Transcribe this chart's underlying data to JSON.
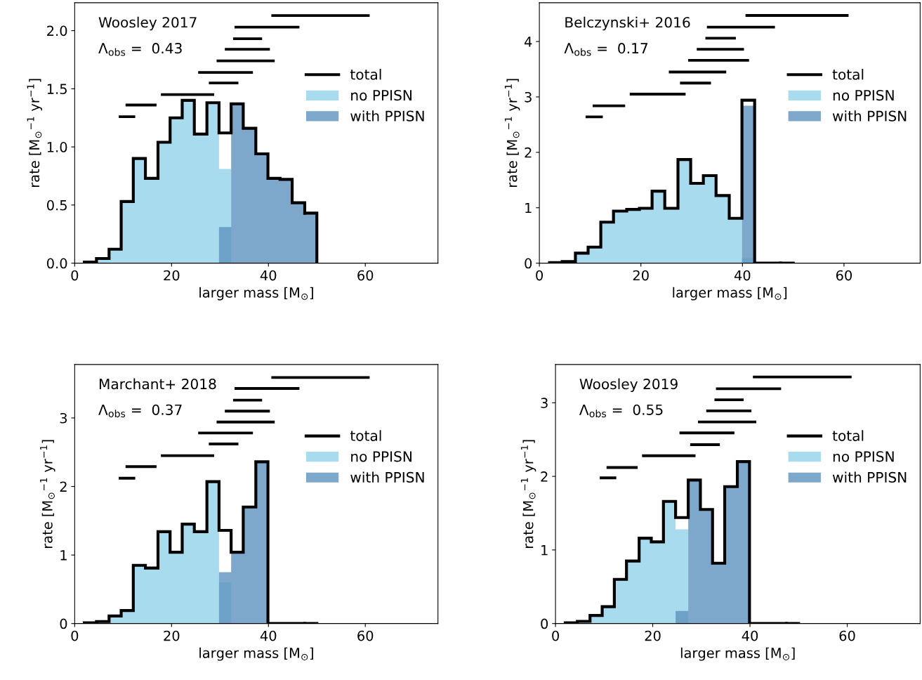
{
  "chart_data": [
    {
      "type": "histogram",
      "title": "Woosley 2017",
      "annotations": [
        "Λ$_{obs}$ =  0.43"
      ],
      "xlabel": "larger mass [M$_{⊙}$]",
      "ylabel": "rate [M$_{⊙}$$^{−1}$ yr$^{−1}$]",
      "bins": [
        2,
        4.5,
        7.1,
        9.6,
        12.1,
        14.6,
        17.2,
        19.7,
        22.2,
        24.7,
        27.3,
        29.8,
        32.3,
        34.8,
        37.4,
        39.9,
        42.4,
        44.9,
        47.5,
        50
      ],
      "xlim": [
        0,
        75
      ],
      "xticks": [
        0,
        20,
        40,
        60
      ],
      "ylim": [
        0,
        2.24
      ],
      "yticks": [
        {
          "value": 0,
          "label": "0.0"
        },
        {
          "value": 0.5,
          "label": "0.5"
        },
        {
          "value": 1,
          "label": "1.0"
        },
        {
          "value": 1.5,
          "label": "1.5"
        },
        {
          "value": 2,
          "label": "2.0"
        }
      ],
      "legend": "right",
      "grid": false,
      "series": [
        {
          "name": "no PPISN",
          "type": "histogram",
          "color": "#a8dbee",
          "values": [
            0.01,
            0.04,
            0.12,
            0.53,
            0.9,
            0.73,
            1.04,
            1.25,
            1.4,
            1.11,
            1.38,
            0.81,
            0,
            0,
            0,
            0,
            0,
            0,
            0
          ]
        },
        {
          "name": "with PPISN",
          "type": "histogram",
          "color": "#7ea8cb",
          "values": [
            0,
            0,
            0,
            0,
            0,
            0,
            0,
            0,
            0,
            0,
            0,
            0.31,
            1.37,
            1.16,
            0.94,
            0.73,
            0.72,
            0.52,
            0.43
          ]
        },
        {
          "name": "total",
          "type": "step",
          "color": "#000000",
          "x": [
            2,
            4.5,
            7.1,
            9.6,
            12.1,
            14.6,
            17.2,
            19.7,
            22.2,
            24.7,
            27.3,
            29.8,
            32.3,
            34.8,
            37.4,
            39.9,
            42.4,
            44.9,
            47.5
          ],
          "values": [
            0.01,
            0.04,
            0.12,
            0.53,
            0.9,
            0.73,
            1.04,
            1.25,
            1.4,
            1.11,
            1.38,
            1.12,
            1.37,
            1.16,
            0.94,
            0.73,
            0.72,
            0.52,
            0.43
          ]
        },
        {
          "type": "line",
          "color": "#000000",
          "x": [
            40.6,
            60.9
          ],
          "values": [
            2.13,
            2.13
          ]
        },
        {
          "type": "line",
          "color": "#000000",
          "x": [
            33.0,
            46.4
          ],
          "values": [
            2.03,
            2.03
          ]
        },
        {
          "type": "line",
          "color": "#000000",
          "x": [
            32.7,
            38.7
          ],
          "values": [
            1.93,
            1.93
          ]
        },
        {
          "type": "line",
          "color": "#000000",
          "x": [
            31.0,
            40.3
          ],
          "values": [
            1.84,
            1.84
          ]
        },
        {
          "type": "line",
          "color": "#000000",
          "x": [
            29.3,
            41.3
          ],
          "values": [
            1.74,
            1.74
          ]
        },
        {
          "type": "line",
          "color": "#000000",
          "x": [
            25.5,
            36.8
          ],
          "values": [
            1.64,
            1.64
          ]
        },
        {
          "type": "line",
          "color": "#000000",
          "x": [
            27.7,
            33.8
          ],
          "values": [
            1.55,
            1.55
          ]
        },
        {
          "type": "line",
          "color": "#000000",
          "x": [
            17.8,
            28.8
          ],
          "values": [
            1.45,
            1.45
          ]
        },
        {
          "type": "line",
          "color": "#000000",
          "x": [
            10.5,
            16.9
          ],
          "values": [
            1.36,
            1.36
          ]
        },
        {
          "type": "line",
          "color": "#000000",
          "x": [
            9.1,
            12.5
          ],
          "values": [
            1.26,
            1.26
          ]
        }
      ]
    },
    {
      "type": "histogram",
      "title": "Belczynski+ 2016",
      "annotations": [
        "Λ$_{obs}$ =  0.17"
      ],
      "xlabel": "larger mass [M$_{⊙}$]",
      "ylabel": "rate [M$_{⊙}$$^{−1}$ yr$^{−1}$]",
      "bins": [
        2,
        4.5,
        7.1,
        9.6,
        12.1,
        14.6,
        17.2,
        19.7,
        22.2,
        24.7,
        27.3,
        29.8,
        32.3,
        34.8,
        37.4,
        39.9,
        42.4,
        44.9,
        47.5,
        50
      ],
      "xlim": [
        0,
        75
      ],
      "xticks": [
        0,
        20,
        40,
        60
      ],
      "ylim": [
        0,
        4.7
      ],
      "yticks": [
        0,
        1,
        2,
        3,
        4
      ],
      "legend": "right",
      "grid": false,
      "series": [
        {
          "name": "no PPISN",
          "type": "histogram",
          "color": "#a8dbee",
          "values": [
            0.01,
            0.03,
            0.18,
            0.29,
            0.74,
            0.94,
            0.97,
            0.99,
            1.3,
            0.99,
            1.87,
            1.44,
            1.58,
            1.22,
            0.81,
            0.09,
            0,
            0,
            0
          ]
        },
        {
          "name": "with PPISN",
          "type": "histogram",
          "color": "#7ea8cb",
          "values": [
            0,
            0,
            0,
            0,
            0,
            0,
            0,
            0,
            0,
            0,
            0,
            0,
            0,
            0,
            0,
            2.84,
            0,
            0,
            0
          ]
        },
        {
          "name": "total",
          "type": "step",
          "color": "#000000",
          "x": [
            2,
            4.5,
            7.1,
            9.6,
            12.1,
            14.6,
            17.2,
            19.7,
            22.2,
            24.7,
            27.3,
            29.8,
            32.3,
            34.8,
            37.4,
            39.9,
            42.4,
            44.9,
            47.5
          ],
          "values": [
            0.01,
            0.03,
            0.18,
            0.29,
            0.74,
            0.94,
            0.97,
            0.99,
            1.3,
            0.99,
            1.87,
            1.44,
            1.58,
            1.22,
            0.81,
            2.94,
            0,
            0,
            0
          ]
        },
        {
          "type": "line",
          "color": "#000000",
          "x": [
            40.6,
            60.9
          ],
          "values": [
            4.47,
            4.47
          ]
        },
        {
          "type": "line",
          "color": "#000000",
          "x": [
            33.0,
            46.4
          ],
          "values": [
            4.26,
            4.26
          ]
        },
        {
          "type": "line",
          "color": "#000000",
          "x": [
            32.7,
            38.7
          ],
          "values": [
            4.06,
            4.06
          ]
        },
        {
          "type": "line",
          "color": "#000000",
          "x": [
            31.0,
            40.3
          ],
          "values": [
            3.86,
            3.86
          ]
        },
        {
          "type": "line",
          "color": "#000000",
          "x": [
            29.3,
            41.3
          ],
          "values": [
            3.66,
            3.66
          ]
        },
        {
          "type": "line",
          "color": "#000000",
          "x": [
            25.5,
            36.8
          ],
          "values": [
            3.45,
            3.45
          ]
        },
        {
          "type": "line",
          "color": "#000000",
          "x": [
            27.7,
            33.8
          ],
          "values": [
            3.25,
            3.25
          ]
        },
        {
          "type": "line",
          "color": "#000000",
          "x": [
            17.8,
            28.8
          ],
          "values": [
            3.05,
            3.05
          ]
        },
        {
          "type": "line",
          "color": "#000000",
          "x": [
            10.5,
            16.9
          ],
          "values": [
            2.84,
            2.84
          ]
        },
        {
          "type": "line",
          "color": "#000000",
          "x": [
            9.1,
            12.5
          ],
          "values": [
            2.64,
            2.64
          ]
        }
      ]
    },
    {
      "type": "histogram",
      "title": "Marchant+ 2018",
      "annotations": [
        "Λ$_{obs}$ =  0.37"
      ],
      "xlabel": "larger mass [M$_{⊙}$]",
      "ylabel": "rate [M$_{⊙}$$^{−1}$ yr$^{−1}$]",
      "bins": [
        2,
        4.5,
        7.1,
        9.6,
        12.1,
        14.6,
        17.2,
        19.7,
        22.2,
        24.7,
        27.3,
        29.8,
        32.3,
        34.8,
        37.4,
        39.9,
        42.4,
        44.9,
        47.5,
        50
      ],
      "xlim": [
        0,
        75
      ],
      "xticks": [
        0,
        20,
        40,
        60
      ],
      "ylim": [
        0,
        3.78
      ],
      "yticks": [
        0,
        1,
        2,
        3
      ],
      "legend": "right",
      "grid": false,
      "series": [
        {
          "name": "no PPISN",
          "type": "histogram",
          "color": "#a8dbee",
          "values": [
            0.01,
            0.03,
            0.11,
            0.19,
            0.85,
            0.81,
            1.34,
            1.04,
            1.45,
            1.34,
            2.07,
            0.6,
            0,
            0,
            0,
            0,
            0,
            0,
            0
          ]
        },
        {
          "name": "with PPISN",
          "type": "histogram",
          "color": "#7ea8cb",
          "values": [
            0,
            0,
            0,
            0,
            0,
            0,
            0,
            0,
            0,
            0,
            0,
            0.75,
            1.04,
            1.7,
            2.36,
            0,
            0,
            0,
            0
          ]
        },
        {
          "name": "total",
          "type": "step",
          "color": "#000000",
          "x": [
            2,
            4.5,
            7.1,
            9.6,
            12.1,
            14.6,
            17.2,
            19.7,
            22.2,
            24.7,
            27.3,
            29.8,
            32.3,
            34.8,
            37.4,
            39.9,
            42.4,
            44.9,
            47.5
          ],
          "values": [
            0.01,
            0.03,
            0.11,
            0.19,
            0.85,
            0.81,
            1.34,
            1.04,
            1.45,
            1.34,
            2.07,
            1.36,
            1.04,
            1.7,
            2.36,
            0,
            0,
            0,
            0
          ]
        },
        {
          "type": "line",
          "color": "#000000",
          "x": [
            40.6,
            60.9
          ],
          "values": [
            3.59,
            3.59
          ]
        },
        {
          "type": "line",
          "color": "#000000",
          "x": [
            33.0,
            46.4
          ],
          "values": [
            3.43,
            3.43
          ]
        },
        {
          "type": "line",
          "color": "#000000",
          "x": [
            32.7,
            38.7
          ],
          "values": [
            3.26,
            3.26
          ]
        },
        {
          "type": "line",
          "color": "#000000",
          "x": [
            31.0,
            40.3
          ],
          "values": [
            3.1,
            3.1
          ]
        },
        {
          "type": "line",
          "color": "#000000",
          "x": [
            29.3,
            41.3
          ],
          "values": [
            2.94,
            2.94
          ]
        },
        {
          "type": "line",
          "color": "#000000",
          "x": [
            25.5,
            36.8
          ],
          "values": [
            2.78,
            2.78
          ]
        },
        {
          "type": "line",
          "color": "#000000",
          "x": [
            27.7,
            33.8
          ],
          "values": [
            2.62,
            2.62
          ]
        },
        {
          "type": "line",
          "color": "#000000",
          "x": [
            17.8,
            28.8
          ],
          "values": [
            2.45,
            2.45
          ]
        },
        {
          "type": "line",
          "color": "#000000",
          "x": [
            10.5,
            16.9
          ],
          "values": [
            2.29,
            2.29
          ]
        },
        {
          "type": "line",
          "color": "#000000",
          "x": [
            9.1,
            12.5
          ],
          "values": [
            2.12,
            2.12
          ]
        }
      ]
    },
    {
      "type": "histogram",
      "title": "Woosley 2019",
      "annotations": [
        "Λ$_{obs}$ =  0.55"
      ],
      "xlabel": "larger mass [M$_{⊙}$]",
      "ylabel": "rate [M$_{⊙}$$^{−1}$ yr$^{−1}$]",
      "bins": [
        2,
        4.5,
        7.1,
        9.6,
        12.1,
        14.6,
        17.2,
        19.7,
        22.2,
        24.7,
        27.3,
        29.8,
        32.3,
        34.8,
        37.4,
        39.9,
        42.4,
        44.9,
        47.5,
        50
      ],
      "xlim": [
        0,
        75
      ],
      "xticks": [
        0,
        20,
        40,
        60
      ],
      "ylim": [
        0,
        3.52
      ],
      "yticks": [
        0,
        1,
        2,
        3
      ],
      "legend": "right",
      "grid": false,
      "series": [
        {
          "name": "no PPISN",
          "type": "histogram",
          "color": "#a8dbee",
          "values": [
            0.01,
            0.03,
            0.11,
            0.23,
            0.6,
            0.85,
            1.16,
            1.11,
            1.66,
            1.28,
            0,
            0,
            0,
            0,
            0,
            0,
            0,
            0,
            0
          ]
        },
        {
          "name": "with PPISN",
          "type": "histogram",
          "color": "#7ea8cb",
          "values": [
            0,
            0,
            0,
            0,
            0,
            0,
            0,
            0,
            0,
            0.17,
            1.95,
            1.55,
            0.82,
            1.86,
            2.2,
            0,
            0,
            0,
            0
          ]
        },
        {
          "name": "total",
          "type": "step",
          "color": "#000000",
          "x": [
            2,
            4.5,
            7.1,
            9.6,
            12.1,
            14.6,
            17.2,
            19.7,
            22.2,
            24.7,
            27.3,
            29.8,
            32.3,
            34.8,
            37.4,
            39.9,
            42.4,
            44.9,
            47.5
          ],
          "values": [
            0.01,
            0.03,
            0.11,
            0.23,
            0.6,
            0.85,
            1.16,
            1.11,
            1.66,
            1.44,
            1.95,
            1.55,
            0.82,
            1.86,
            2.2,
            0,
            0,
            0,
            0
          ]
        },
        {
          "type": "line",
          "color": "#000000",
          "x": [
            40.6,
            60.9
          ],
          "values": [
            3.35,
            3.35
          ]
        },
        {
          "type": "line",
          "color": "#000000",
          "x": [
            33.0,
            46.4
          ],
          "values": [
            3.19,
            3.19
          ]
        },
        {
          "type": "line",
          "color": "#000000",
          "x": [
            32.7,
            38.7
          ],
          "values": [
            3.04,
            3.04
          ]
        },
        {
          "type": "line",
          "color": "#000000",
          "x": [
            31.0,
            40.3
          ],
          "values": [
            2.89,
            2.89
          ]
        },
        {
          "type": "line",
          "color": "#000000",
          "x": [
            29.3,
            41.3
          ],
          "values": [
            2.74,
            2.74
          ]
        },
        {
          "type": "line",
          "color": "#000000",
          "x": [
            25.5,
            36.8
          ],
          "values": [
            2.59,
            2.59
          ]
        },
        {
          "type": "line",
          "color": "#000000",
          "x": [
            27.7,
            33.8
          ],
          "values": [
            2.43,
            2.43
          ]
        },
        {
          "type": "line",
          "color": "#000000",
          "x": [
            17.8,
            28.8
          ],
          "values": [
            2.28,
            2.28
          ]
        },
        {
          "type": "line",
          "color": "#000000",
          "x": [
            10.5,
            16.9
          ],
          "values": [
            2.12,
            2.12
          ]
        },
        {
          "type": "line",
          "color": "#000000",
          "x": [
            9.1,
            12.5
          ],
          "values": [
            1.98,
            1.98
          ]
        }
      ]
    }
  ]
}
